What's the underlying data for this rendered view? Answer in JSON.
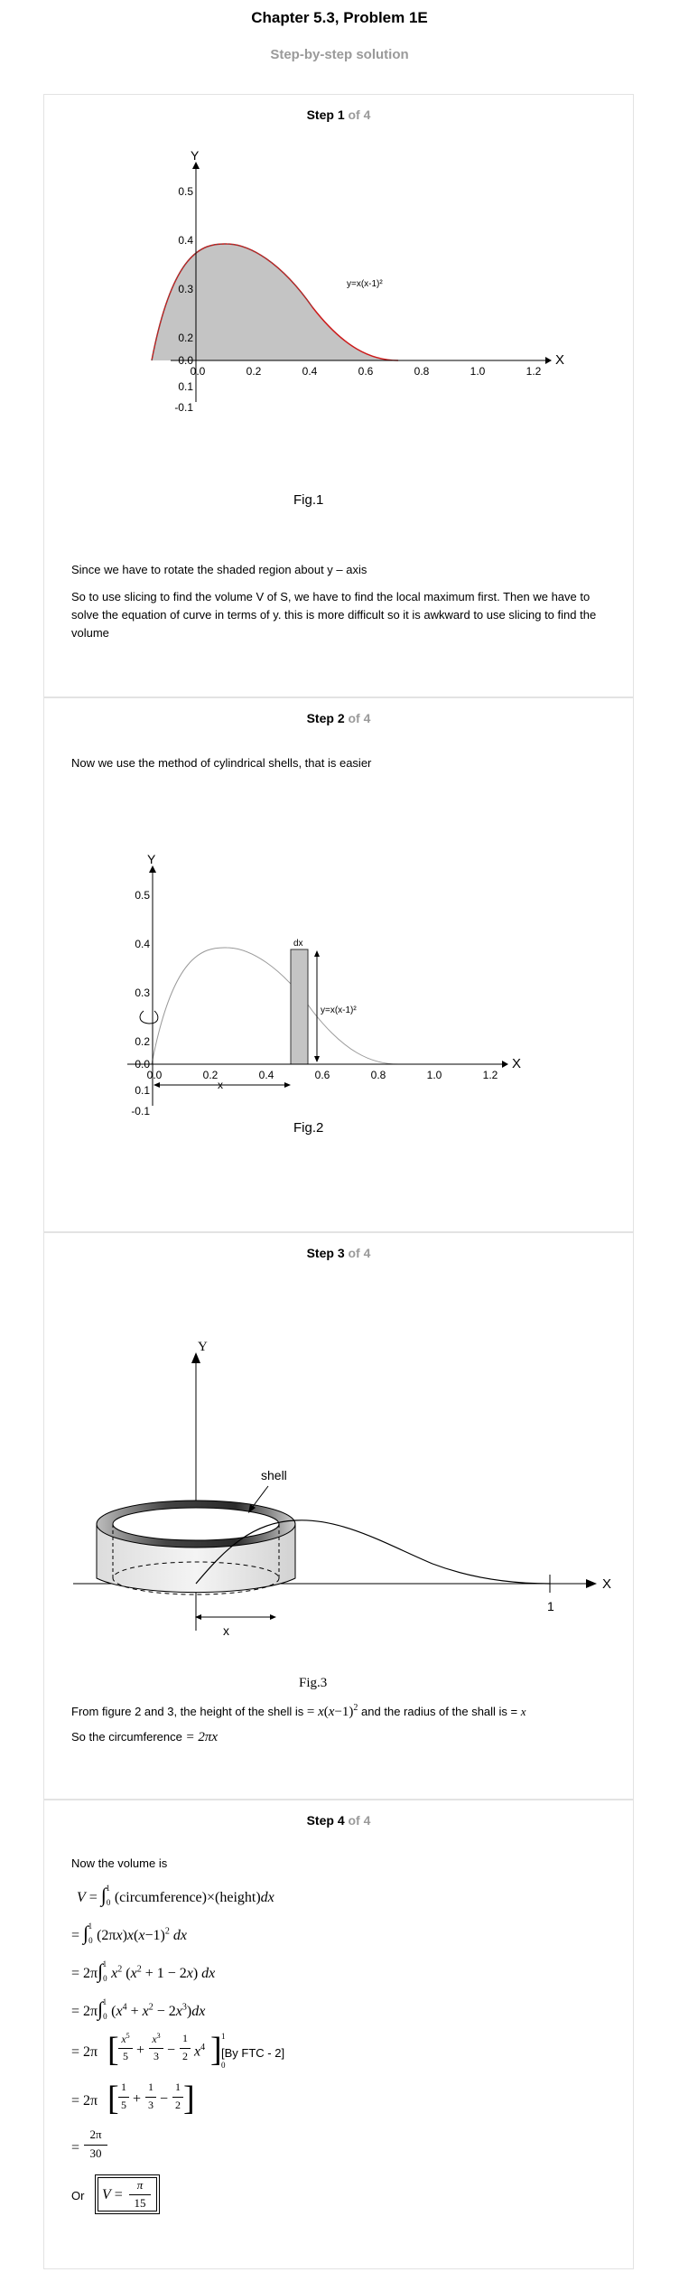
{
  "header": {
    "title": "Chapter 5.3, Problem 1E",
    "subtitle": "Step-by-step solution"
  },
  "steps": [
    {
      "num": "Step 1",
      "of": " of 4",
      "figure": {
        "x_label": "X",
        "y_label": "Y",
        "x_ticks": [
          "0.0",
          "0.2",
          "0.4",
          "0.6",
          "0.8",
          "1.0",
          "1.2"
        ],
        "y_ticks": [
          "0.5",
          "0.4",
          "0.3",
          "0.2",
          "0.1",
          "0.0",
          "-0.1"
        ],
        "curve_label": "y=x(x-1)²",
        "caption": "Fig.1"
      },
      "para1": "Since we have to rotate the shaded region about y – axis",
      "para2": "So to use slicing to find the volume V of S, we have to find the local maximum first. Then we have to solve the equation of curve in terms of y. this is more difficult so it is awkward to use slicing to find the volume"
    },
    {
      "num": "Step 2",
      "of": " of 4",
      "para1": "Now we use the method of cylindrical shells, that is easier",
      "figure": {
        "x_label": "X",
        "y_label": "Y",
        "x_ticks": [
          "0.0",
          "0.2",
          "0.4",
          "0.6",
          "0.8",
          "1.0",
          "1.2"
        ],
        "y_ticks": [
          "0.5",
          "0.4",
          "0.3",
          "0.2",
          "0.1",
          "0.0",
          "-0.1"
        ],
        "curve_label": "y=x(x-1)²",
        "dx_label": "dx",
        "x_mark": "x",
        "caption": "Fig.2"
      }
    },
    {
      "num": "Step 3",
      "of": " of 4",
      "figure": {
        "y_label": "Y",
        "x_label": "X",
        "shell_label": "shell",
        "one_label": "1",
        "x_mark": "x",
        "caption": "Fig.3"
      },
      "line1_a": "From figure 2 and 3, the height of the shell is",
      "line1_b": "and the radius of the shall is =",
      "line1_x": "x",
      "line2_a": "So the circumference",
      "line2_math": "= 2πx"
    },
    {
      "num": "Step 4",
      "of": " of 4",
      "intro": "Now the volume is",
      "ftc": "[By FTC - 2]",
      "or_label": "Or"
    }
  ]
}
